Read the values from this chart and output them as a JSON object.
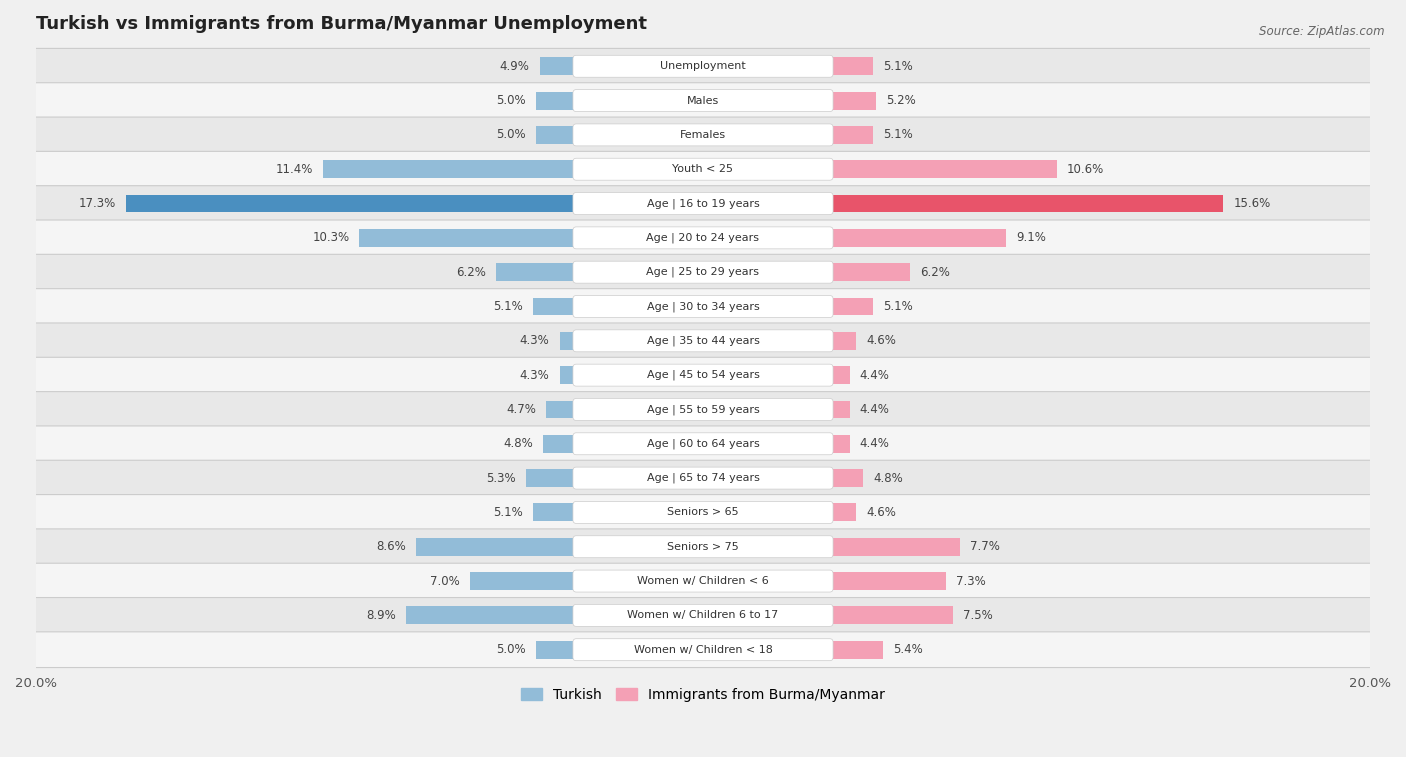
{
  "title": "Turkish vs Immigrants from Burma/Myanmar Unemployment",
  "source": "Source: ZipAtlas.com",
  "categories": [
    "Unemployment",
    "Males",
    "Females",
    "Youth < 25",
    "Age | 16 to 19 years",
    "Age | 20 to 24 years",
    "Age | 25 to 29 years",
    "Age | 30 to 34 years",
    "Age | 35 to 44 years",
    "Age | 45 to 54 years",
    "Age | 55 to 59 years",
    "Age | 60 to 64 years",
    "Age | 65 to 74 years",
    "Seniors > 65",
    "Seniors > 75",
    "Women w/ Children < 6",
    "Women w/ Children 6 to 17",
    "Women w/ Children < 18"
  ],
  "turkish": [
    4.9,
    5.0,
    5.0,
    11.4,
    17.3,
    10.3,
    6.2,
    5.1,
    4.3,
    4.3,
    4.7,
    4.8,
    5.3,
    5.1,
    8.6,
    7.0,
    8.9,
    5.0
  ],
  "burma": [
    5.1,
    5.2,
    5.1,
    10.6,
    15.6,
    9.1,
    6.2,
    5.1,
    4.6,
    4.4,
    4.4,
    4.4,
    4.8,
    4.6,
    7.7,
    7.3,
    7.5,
    5.4
  ],
  "turkish_color": "#92bcd8",
  "burma_color": "#f4a0b5",
  "turkish_highlight_color": "#4a8fc0",
  "burma_highlight_color": "#e8546a",
  "row_color_odd": "#f5f5f5",
  "row_color_even": "#e8e8e8",
  "background_color": "#f0f0f0",
  "label_bg_color": "#ffffff",
  "max_val": 20.0,
  "bar_height": 0.52,
  "legend_turkish": "Turkish",
  "legend_burma": "Immigrants from Burma/Myanmar",
  "highlight_threshold": 14.0
}
